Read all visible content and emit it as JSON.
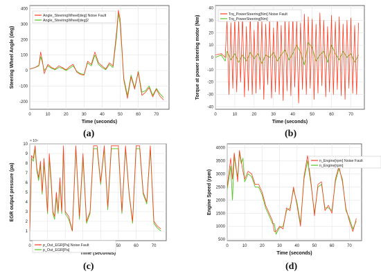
{
  "colors": {
    "noise": "#ff3b1f",
    "clean": "#54c521",
    "axis": "#444444",
    "grid": "#e3e3e3"
  },
  "chart_data": [
    {
      "type": "line",
      "panel_label": "(a)",
      "xlabel": "Time (seconds)",
      "ylabel": "Steering Wheel Angle (deg)",
      "xlim": [
        0,
        77
      ],
      "ylim": [
        -250,
        420
      ],
      "xticks": [
        0,
        10,
        20,
        30,
        40,
        50,
        60,
        70
      ],
      "yticks": [
        -200,
        -100,
        0,
        100,
        200,
        300,
        400
      ],
      "grid": true,
      "legend_position": "top-left",
      "series": [
        {
          "name": "Angle_SteeringWheel[deg] Noise Fault",
          "color": "#ff3b1f",
          "x": [
            0,
            3,
            5,
            6,
            7,
            8,
            10,
            12,
            14,
            16,
            18,
            20,
            22,
            24,
            26,
            28,
            30,
            32,
            34,
            36,
            38,
            40,
            42,
            44,
            46,
            48,
            49,
            50,
            51,
            52,
            54,
            56,
            58,
            60,
            62,
            64,
            66,
            68,
            70,
            72,
            74
          ],
          "y": [
            10,
            20,
            35,
            120,
            60,
            -20,
            40,
            20,
            10,
            30,
            20,
            5,
            25,
            40,
            -10,
            -25,
            -30,
            60,
            40,
            120,
            50,
            30,
            10,
            50,
            30,
            250,
            390,
            330,
            140,
            -60,
            -180,
            -40,
            -120,
            -10,
            -160,
            -140,
            -110,
            -170,
            -120,
            -165,
            -190
          ]
        },
        {
          "name": "Angle_SteeringWheel[deg]2",
          "color": "#54c521",
          "x": [
            0,
            3,
            5,
            6,
            7,
            8,
            10,
            12,
            14,
            16,
            18,
            20,
            22,
            24,
            26,
            28,
            30,
            32,
            34,
            36,
            38,
            40,
            42,
            44,
            46,
            48,
            49,
            50,
            51,
            52,
            54,
            56,
            58,
            60,
            62,
            64,
            66,
            68,
            70,
            72,
            74
          ],
          "y": [
            10,
            20,
            30,
            90,
            50,
            0,
            30,
            15,
            5,
            20,
            15,
            0,
            15,
            30,
            -5,
            -20,
            -25,
            50,
            30,
            100,
            40,
            20,
            5,
            40,
            20,
            220,
            370,
            300,
            120,
            -50,
            -160,
            -30,
            -110,
            -5,
            -140,
            -130,
            -100,
            -160,
            -115,
            -150,
            -175
          ]
        }
      ]
    },
    {
      "type": "line",
      "panel_label": "(b)",
      "xlabel": "Time (seconds)",
      "ylabel": "Torque at power steering motor (Nm)",
      "xlim": [
        0,
        77
      ],
      "ylim": [
        -42,
        42
      ],
      "xticks": [
        0,
        10,
        20,
        30,
        40,
        50,
        60,
        70
      ],
      "yticks": [
        -40,
        -30,
        -20,
        -10,
        0,
        10,
        20,
        30,
        40
      ],
      "grid": true,
      "legend_position": "top-left",
      "series": [
        {
          "name": "Trq_PowerSteering[Nm] Noise Fault",
          "color": "#ff3b1f",
          "x": [
            0,
            3,
            5,
            6,
            7,
            8,
            9,
            10,
            11,
            12,
            13,
            14,
            15,
            16,
            17,
            18,
            19,
            20,
            21,
            22,
            23,
            24,
            25,
            26,
            27,
            28,
            29,
            30,
            31,
            32,
            33,
            34,
            35,
            36,
            37,
            38,
            39,
            40,
            41,
            42,
            43,
            44,
            45,
            46,
            47,
            48,
            49,
            50,
            51,
            52,
            53,
            54,
            55,
            56,
            57,
            58,
            59,
            60,
            61,
            62,
            63,
            64,
            65,
            66,
            67,
            68,
            69,
            70,
            71,
            72,
            73,
            74
          ],
          "y": [
            2,
            3,
            0,
            30,
            -30,
            28,
            -25,
            32,
            -28,
            30,
            -20,
            34,
            -32,
            25,
            -27,
            35,
            -30,
            22,
            -29,
            33,
            -26,
            30,
            -34,
            27,
            -22,
            31,
            -33,
            24,
            -28,
            36,
            -30,
            26,
            -35,
            32,
            -27,
            29,
            -31,
            34,
            -24,
            30,
            -37,
            28,
            -26,
            35,
            -30,
            33,
            -25,
            31,
            -34,
            27,
            -29,
            36,
            -23,
            30,
            -32,
            25,
            -28,
            34,
            -30,
            29,
            -26,
            33,
            -31,
            27,
            -34,
            30,
            -25,
            32,
            -29,
            26,
            -30,
            28
          ]
        },
        {
          "name": "Trq_PowerSteering[Nm]",
          "color": "#54c521",
          "x": [
            0,
            3,
            5,
            6,
            8,
            10,
            12,
            14,
            16,
            18,
            20,
            22,
            24,
            26,
            28,
            30,
            32,
            34,
            36,
            38,
            40,
            42,
            44,
            46,
            48,
            50,
            52,
            54,
            56,
            58,
            60,
            62,
            64,
            66,
            68,
            70,
            72,
            74
          ],
          "y": [
            0,
            2,
            -3,
            5,
            -2,
            3,
            -4,
            2,
            -3,
            4,
            -1,
            3,
            -5,
            2,
            0,
            4,
            -3,
            2,
            6,
            -2,
            3,
            10,
            4,
            -6,
            12,
            8,
            -3,
            2,
            5,
            -4,
            10,
            3,
            -2,
            5,
            0,
            3,
            -4,
            2
          ]
        }
      ]
    },
    {
      "type": "line",
      "panel_label": "(c)",
      "xlabel": "Time (seconds)",
      "ylabel": "EGR output pressure (pa)",
      "y_multiplier": "× 10⁴",
      "xlim": [
        0,
        77
      ],
      "ylim": [
        0,
        10
      ],
      "xticks": [
        0,
        10,
        20,
        30,
        40,
        50,
        60,
        70
      ],
      "yticks": [
        1,
        2,
        3,
        4,
        5,
        6,
        7,
        8,
        9,
        10
      ],
      "grid": true,
      "legend_position": "center-left",
      "series": [
        {
          "name": "p_Out_EGR[Pa] Noise Fault",
          "color": "#ff3b1f",
          "x": [
            0,
            1,
            2,
            3,
            4,
            5,
            6,
            7,
            8,
            9,
            10,
            11,
            12,
            13,
            14,
            15,
            16,
            17,
            18,
            19,
            20,
            22,
            24,
            26,
            28,
            30,
            32,
            34,
            36,
            38,
            40,
            42,
            44,
            46,
            48,
            50,
            52,
            54,
            56,
            58,
            60,
            62,
            64,
            66,
            68,
            70,
            72,
            74
          ],
          "y": [
            1,
            8.8,
            8.5,
            9.8,
            7.5,
            6.5,
            8.2,
            5.0,
            8.5,
            6.0,
            3.0,
            9.0,
            6.5,
            3.0,
            2.5,
            5.0,
            3.0,
            6.5,
            3.0,
            9.8,
            3.0,
            2.5,
            1.0,
            9.8,
            2.5,
            9.0,
            2.0,
            3.0,
            9.8,
            9.8,
            6.0,
            9.8,
            3.5,
            9.8,
            9.8,
            9.8,
            3.0,
            9.8,
            5.0,
            2.0,
            9.8,
            9.8,
            5.0,
            4.0,
            9.8,
            2.0,
            1.5,
            1.2
          ]
        },
        {
          "name": "p_Out_EGR[Pa]",
          "color": "#54c521",
          "x": [
            0,
            1,
            2,
            3,
            4,
            5,
            6,
            7,
            8,
            9,
            10,
            11,
            12,
            13,
            14,
            15,
            16,
            17,
            18,
            19,
            20,
            22,
            24,
            26,
            28,
            30,
            32,
            34,
            36,
            38,
            40,
            42,
            44,
            46,
            48,
            50,
            52,
            54,
            56,
            58,
            60,
            62,
            64,
            66,
            68,
            70,
            72,
            74
          ],
          "y": [
            1,
            8.5,
            8.2,
            9.5,
            7.2,
            6.2,
            7.8,
            4.8,
            8.0,
            5.8,
            2.8,
            8.5,
            6.0,
            2.8,
            2.2,
            4.5,
            2.8,
            6.0,
            2.8,
            9.5,
            2.8,
            2.2,
            1.0,
            9.5,
            2.2,
            8.5,
            1.8,
            2.8,
            9.5,
            9.5,
            5.8,
            9.5,
            3.2,
            9.5,
            9.5,
            9.5,
            2.8,
            9.5,
            4.8,
            1.8,
            9.5,
            9.5,
            4.8,
            3.8,
            9.5,
            1.8,
            1.3,
            1.0
          ]
        }
      ]
    },
    {
      "type": "line",
      "panel_label": "(d)",
      "xlabel": "Time (seconds)",
      "ylabel": "Engine Speed (rpm)",
      "xlim": [
        0,
        77
      ],
      "ylim": [
        450,
        4150
      ],
      "xticks": [
        0,
        10,
        20,
        30,
        40,
        50,
        60,
        70
      ],
      "yticks": [
        500,
        1000,
        1500,
        2000,
        2500,
        3000,
        3500,
        4000
      ],
      "grid": true,
      "legend_position": "top-right",
      "series": [
        {
          "name": "n_Engine[rpm] Noise Fault",
          "color": "#ff3b1f",
          "x": [
            0,
            2,
            3,
            4,
            5,
            6,
            7,
            8,
            9,
            10,
            12,
            14,
            16,
            18,
            20,
            22,
            24,
            26,
            27,
            28,
            30,
            32,
            34,
            36,
            38,
            40,
            42,
            44,
            46,
            48,
            50,
            52,
            54,
            56,
            58,
            60,
            62,
            64,
            66,
            68,
            70,
            72,
            74
          ],
          "y": [
            2500,
            3600,
            2800,
            3800,
            3300,
            2700,
            3900,
            3500,
            3100,
            2800,
            3100,
            3000,
            2600,
            2600,
            2300,
            1800,
            1500,
            1200,
            800,
            800,
            1000,
            900,
            1700,
            1600,
            2500,
            1800,
            1000,
            2900,
            3700,
            2700,
            1400,
            2600,
            2700,
            1600,
            1800,
            1500,
            2800,
            3300,
            2700,
            1700,
            1200,
            800,
            1300
          ]
        },
        {
          "name": "n_Engine[rpm]",
          "color": "#54c521",
          "x": [
            0,
            2,
            3,
            4,
            5,
            6,
            7,
            8,
            9,
            10,
            12,
            14,
            16,
            18,
            20,
            22,
            24,
            26,
            27,
            28,
            30,
            32,
            34,
            36,
            38,
            40,
            42,
            44,
            46,
            48,
            50,
            52,
            54,
            56,
            58,
            60,
            62,
            64,
            66,
            68,
            70,
            72,
            74
          ],
          "y": [
            2400,
            3300,
            2000,
            3700,
            3200,
            2900,
            3800,
            3400,
            3600,
            2700,
            3000,
            2900,
            2500,
            2500,
            2200,
            1700,
            1400,
            1100,
            1100,
            700,
            950,
            1000,
            1600,
            1700,
            2400,
            1900,
            1100,
            2800,
            3500,
            2600,
            1500,
            2500,
            2600,
            1700,
            1700,
            1600,
            2700,
            3200,
            2800,
            1600,
            1300,
            900,
            1200
          ]
        }
      ]
    }
  ]
}
